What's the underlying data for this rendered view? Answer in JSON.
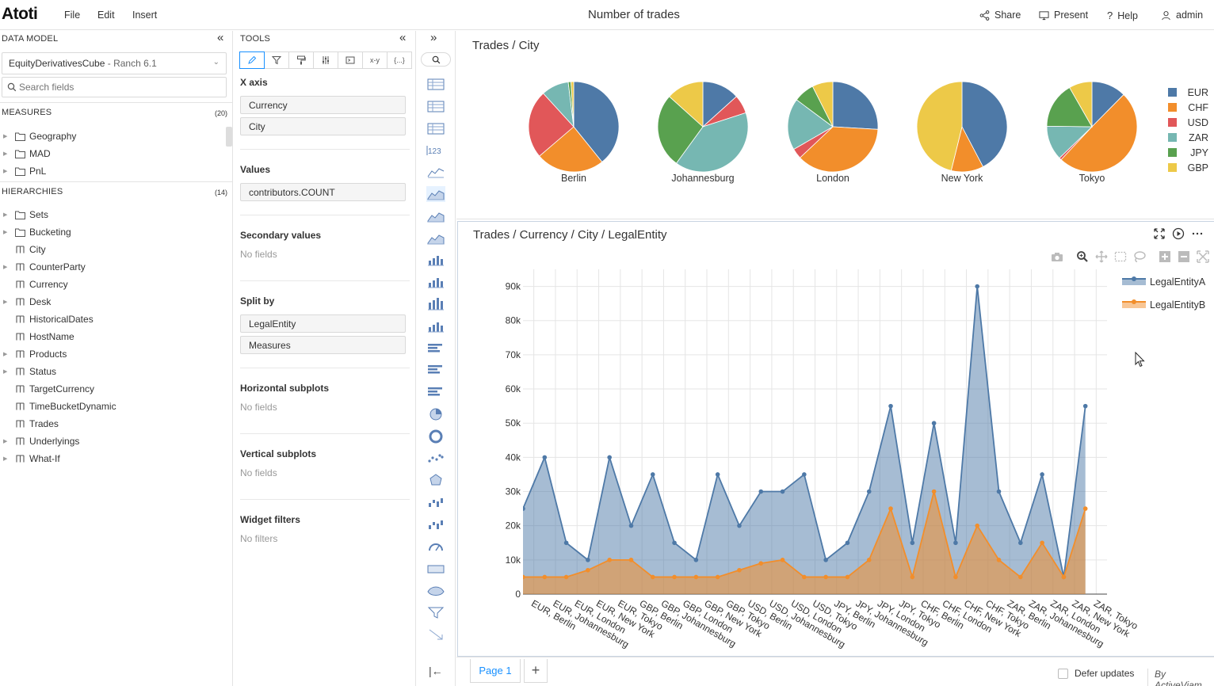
{
  "app": {
    "logo": "Atoti",
    "menus": [
      "File",
      "Edit",
      "Insert"
    ],
    "title": "Number of trades",
    "actions": {
      "share": "Share",
      "present": "Present",
      "help": "Help",
      "user": "admin"
    }
  },
  "data_model": {
    "header": "DATA MODEL",
    "cube": {
      "name": "EquityDerivativesCube",
      "server": "- Ranch 6.1"
    },
    "search_placeholder": "Search fields",
    "measures": {
      "label": "MEASURES",
      "count": "(20)",
      "items": [
        "Geography",
        "MAD",
        "PnL"
      ]
    },
    "hierarchies": {
      "label": "HIERARCHIES",
      "count": "(14)",
      "folders": [
        "Sets",
        "Bucketing"
      ],
      "items": [
        {
          "label": "City",
          "expandable": false
        },
        {
          "label": "CounterParty",
          "expandable": true
        },
        {
          "label": "Currency",
          "expandable": false
        },
        {
          "label": "Desk",
          "expandable": true
        },
        {
          "label": "HistoricalDates",
          "expandable": false
        },
        {
          "label": "HostName",
          "expandable": false
        },
        {
          "label": "Products",
          "expandable": true
        },
        {
          "label": "Status",
          "expandable": true
        },
        {
          "label": "TargetCurrency",
          "expandable": false
        },
        {
          "label": "TimeBucketDynamic",
          "expandable": false
        },
        {
          "label": "Trades",
          "expandable": false
        },
        {
          "label": "Underlyings",
          "expandable": true
        },
        {
          "label": "What-If",
          "expandable": true
        }
      ]
    }
  },
  "tools": {
    "header": "TOOLS",
    "tab_xy": "x-y",
    "tab_mdx": "{...}",
    "x_axis": {
      "label": "X axis",
      "fields": [
        "Currency",
        "City"
      ]
    },
    "values": {
      "label": "Values",
      "fields": [
        "contributors.COUNT"
      ]
    },
    "secondary": {
      "label": "Secondary values",
      "empty": "No fields"
    },
    "split_by": {
      "label": "Split by",
      "fields": [
        "LegalEntity",
        "Measures"
      ]
    },
    "hsub": {
      "label": "Horizontal subplots",
      "empty": "No fields"
    },
    "vsub": {
      "label": "Vertical subplots",
      "empty": "No fields"
    },
    "filters": {
      "label": "Widget filters",
      "empty": "No filters"
    }
  },
  "widget_strip": {
    "text_123": "123"
  },
  "pie_widget": {
    "title": "Trades / City",
    "colors": {
      "EUR": "#4e79a7",
      "CHF": "#f28e2b",
      "USD": "#e15759",
      "ZAR": "#76b7b2",
      "JPY": "#59a14f",
      "GBP": "#edc948"
    },
    "legend": [
      "EUR",
      "CHF",
      "USD",
      "ZAR",
      "JPY",
      "GBP"
    ]
  },
  "area_widget": {
    "title": "Trades / Currency / City / LegalEntity"
  },
  "chart_data": [
    {
      "type": "pie",
      "categories": [
        "Berlin",
        "Johannesburg",
        "London",
        "New York",
        "Tokyo"
      ],
      "series": [
        {
          "name": "EUR",
          "values": [
            40,
            20,
            35,
            55,
            15
          ]
        },
        {
          "name": "CHF",
          "values": [
            25,
            0,
            50,
            15,
            60
          ]
        },
        {
          "name": "USD",
          "values": [
            25,
            10,
            5,
            0,
            1
          ]
        },
        {
          "name": "ZAR",
          "values": [
            10,
            60,
            25,
            0,
            15
          ]
        },
        {
          "name": "JPY",
          "values": [
            1,
            40,
            10,
            0,
            20
          ]
        },
        {
          "name": "GBP",
          "values": [
            1,
            20,
            10,
            60,
            10
          ]
        }
      ]
    },
    {
      "type": "area",
      "categories": [
        "EUR, Berlin",
        "EUR, Johannesburg",
        "EUR, London",
        "EUR, New York",
        "EUR, Tokyo",
        "GBP, Berlin",
        "GBP, Johannesburg",
        "GBP, London",
        "GBP, New York",
        "GBP, Tokyo",
        "USD, Berlin",
        "USD, Johannesburg",
        "USD, London",
        "USD, Tokyo",
        "JPY, Berlin",
        "JPY, Johannesburg",
        "JPY, London",
        "JPY, Tokyo",
        "CHF, Berlin",
        "CHF, London",
        "CHF, New York",
        "CHF, Tokyo",
        "ZAR, Berlin",
        "ZAR, Johannesburg",
        "ZAR, London",
        "ZAR, New York",
        "ZAR, Tokyo"
      ],
      "x_positions": [
        -0.5,
        0.5,
        1.5,
        2.5,
        3.5,
        4.5,
        5.5,
        6.5,
        7.5,
        8.5,
        9.5,
        10.5,
        11.5,
        12.5,
        13.5,
        14.5,
        15.5,
        16.5,
        17.5,
        18.5,
        19.5,
        20.5,
        21.5,
        22.5,
        23.5,
        24.5,
        25.5,
        26.5
      ],
      "series": [
        {
          "name": "LegalEntityA",
          "values": [
            25000,
            40000,
            15000,
            10000,
            40000,
            20000,
            35000,
            15000,
            10000,
            35000,
            20000,
            30000,
            30000,
            35000,
            10000,
            15000,
            30000,
            55000,
            15000,
            50000,
            15000,
            90000,
            30000,
            15000,
            35000,
            5000,
            55000
          ]
        },
        {
          "name": "LegalEntityB",
          "values": [
            5000,
            5000,
            5000,
            7000,
            10000,
            10000,
            5000,
            5000,
            5000,
            5000,
            7000,
            9000,
            10000,
            5000,
            5000,
            5000,
            10000,
            25000,
            5000,
            30000,
            5000,
            20000,
            10000,
            5000,
            15000,
            5000,
            25000
          ]
        }
      ],
      "y_ticks": [
        "0",
        "10k",
        "20k",
        "30k",
        "40k",
        "50k",
        "60k",
        "70k",
        "80k",
        "90k"
      ],
      "ylim": [
        0,
        95000
      ],
      "colors": {
        "LegalEntityA": "#4e79a7",
        "LegalEntityB": "#f28e2b"
      },
      "grid": true,
      "legend_position": "top-right"
    }
  ],
  "footer": {
    "page": "Page 1",
    "add": "+",
    "defer": "Defer updates",
    "brand": "By ActiveViam"
  }
}
